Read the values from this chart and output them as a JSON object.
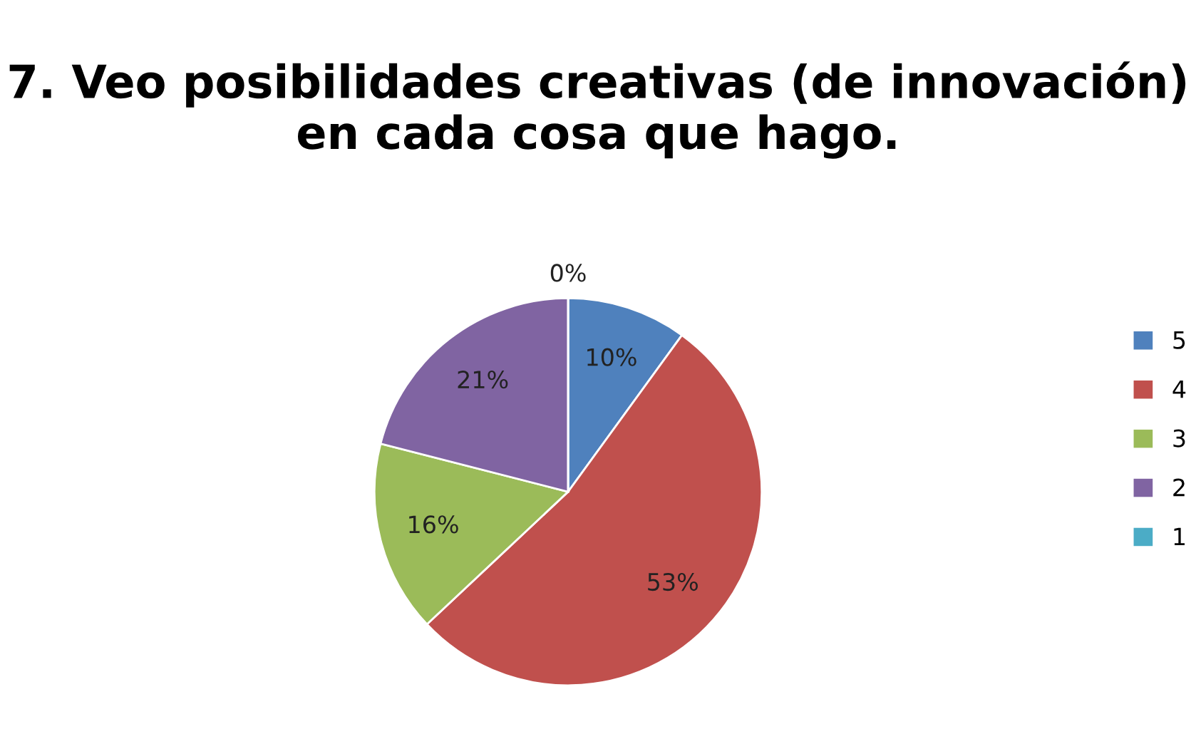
{
  "chart_data": {
    "type": "pie",
    "title": "7. Veo posibilidades creativas (de innovación) en cada cosa que hago.",
    "categories": [
      "5",
      "4",
      "3",
      "2",
      "1"
    ],
    "values": [
      10,
      53,
      16,
      21,
      0
    ],
    "colors": [
      "#4f81bd",
      "#c0504d",
      "#9bbb59",
      "#8064a2",
      "#4bacc6"
    ],
    "value_labels": [
      "10%",
      "53%",
      "16%",
      "21%",
      "0%"
    ],
    "legend": "right"
  }
}
